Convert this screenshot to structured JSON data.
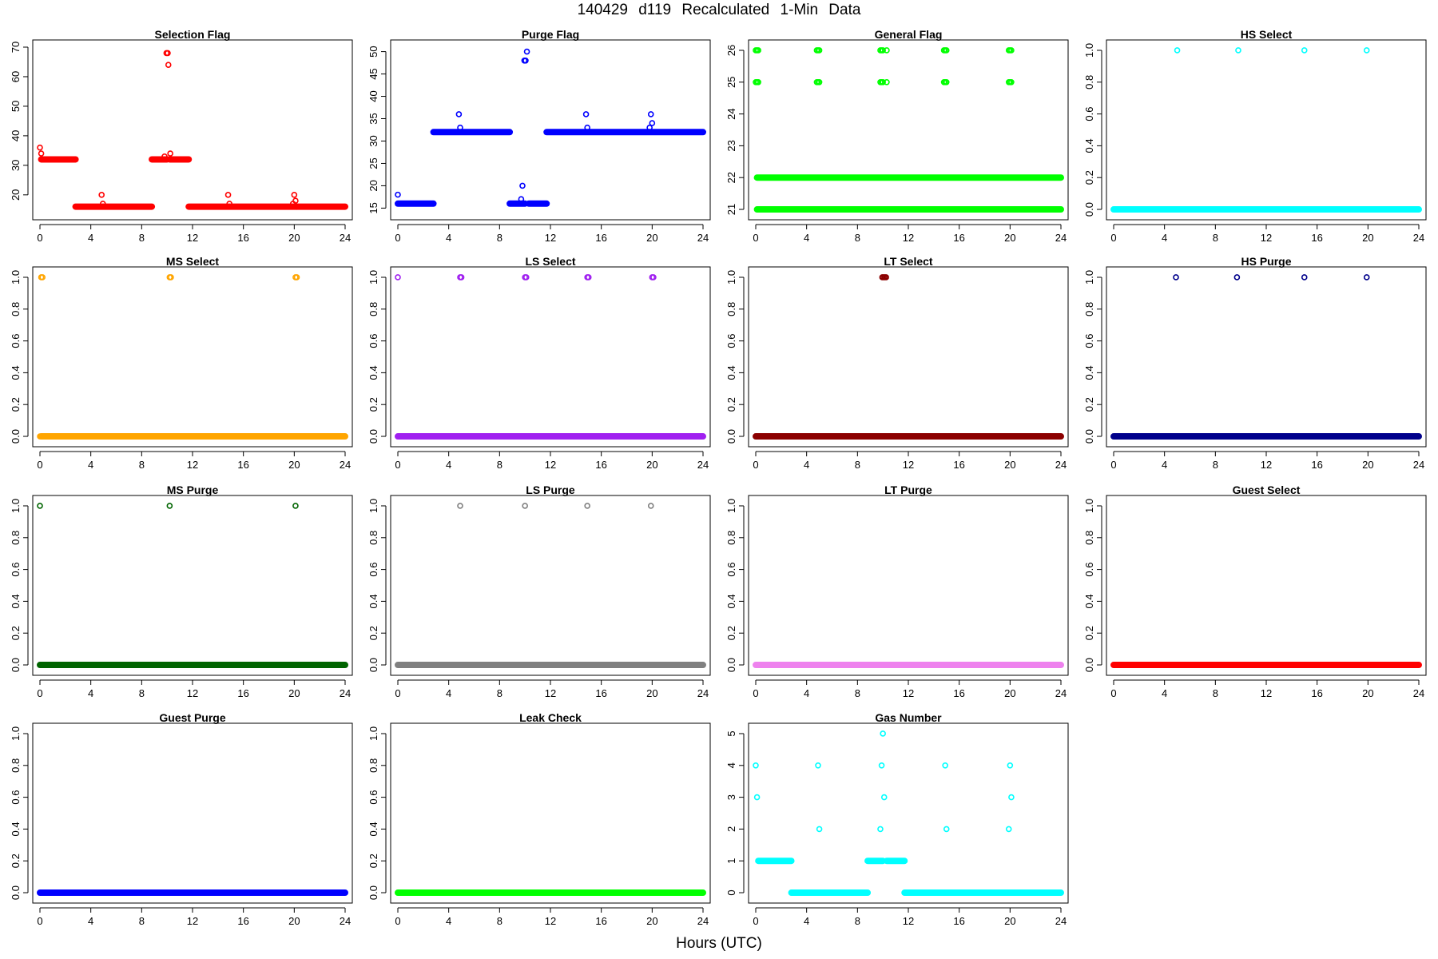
{
  "figure": {
    "title": "140429   d119   Recalculated 1-Min Data",
    "xlabel": "Hours (UTC)"
  },
  "chart_data": [
    {
      "type": "scatter",
      "title": "Selection Flag",
      "color": "#ff0000",
      "xlim": [
        0,
        24
      ],
      "ylim": [
        14,
        70
      ],
      "xticks": [
        0,
        4,
        8,
        12,
        16,
        20,
        24
      ],
      "yticks": [
        20,
        30,
        40,
        50,
        60,
        70
      ],
      "segments": [
        {
          "x0": 0.1,
          "x1": 2.8,
          "y": 32
        },
        {
          "x0": 2.8,
          "x1": 8.8,
          "y": 16
        },
        {
          "x0": 8.8,
          "x1": 10.0,
          "y": 32
        },
        {
          "x0": 10.2,
          "x1": 11.7,
          "y": 32
        },
        {
          "x0": 11.7,
          "x1": 20.2,
          "y": 16
        },
        {
          "x0": 20.2,
          "x1": 24.0,
          "y": 16
        }
      ],
      "points": [
        [
          0.0,
          36
        ],
        [
          0.1,
          34
        ],
        [
          4.85,
          20
        ],
        [
          4.95,
          17
        ],
        [
          5.0,
          16
        ],
        [
          9.8,
          33
        ],
        [
          9.95,
          68
        ],
        [
          10.05,
          68
        ],
        [
          10.1,
          64
        ],
        [
          10.25,
          34
        ],
        [
          14.8,
          20
        ],
        [
          14.9,
          17
        ],
        [
          20.0,
          20
        ],
        [
          19.9,
          17
        ],
        [
          20.1,
          18
        ]
      ]
    },
    {
      "type": "scatter",
      "title": "Purge Flag",
      "color": "#0000ff",
      "xlim": [
        0,
        24
      ],
      "ylim": [
        14,
        51
      ],
      "xticks": [
        0,
        4,
        8,
        12,
        16,
        20,
        24
      ],
      "yticks": [
        15,
        20,
        25,
        30,
        35,
        40,
        45,
        50
      ],
      "segments": [
        {
          "x0": 0.0,
          "x1": 2.8,
          "y": 16
        },
        {
          "x0": 2.8,
          "x1": 8.8,
          "y": 32
        },
        {
          "x0": 8.8,
          "x1": 10.0,
          "y": 16
        },
        {
          "x0": 10.3,
          "x1": 11.7,
          "y": 16
        },
        {
          "x0": 11.7,
          "x1": 24.0,
          "y": 32
        }
      ],
      "points": [
        [
          0.0,
          18
        ],
        [
          4.8,
          36
        ],
        [
          4.9,
          33
        ],
        [
          9.7,
          17
        ],
        [
          9.8,
          20
        ],
        [
          9.95,
          48
        ],
        [
          10.05,
          48
        ],
        [
          10.15,
          50
        ],
        [
          14.8,
          36
        ],
        [
          14.9,
          33
        ],
        [
          19.9,
          36
        ],
        [
          20.0,
          34
        ],
        [
          19.8,
          33
        ]
      ]
    },
    {
      "type": "scatter",
      "title": "General Flag",
      "color": "#00ff00",
      "xlim": [
        0,
        24
      ],
      "ylim": [
        20.9,
        26.1
      ],
      "xticks": [
        0,
        4,
        8,
        12,
        16,
        20,
        24
      ],
      "yticks": [
        21,
        22,
        23,
        24,
        25,
        26
      ],
      "segments": [
        {
          "x0": 0.1,
          "x1": 24.0,
          "y": 22
        },
        {
          "x0": 0.1,
          "x1": 24.0,
          "y": 21
        }
      ],
      "points": [
        [
          0.0,
          26
        ],
        [
          0.1,
          26
        ],
        [
          0.2,
          26
        ],
        [
          0.0,
          25
        ],
        [
          0.1,
          25
        ],
        [
          0.2,
          25
        ],
        [
          4.8,
          26
        ],
        [
          4.9,
          26
        ],
        [
          5.0,
          26
        ],
        [
          4.8,
          25
        ],
        [
          4.9,
          25
        ],
        [
          5.0,
          25
        ],
        [
          9.8,
          26
        ],
        [
          9.9,
          26
        ],
        [
          10.0,
          26
        ],
        [
          10.3,
          26
        ],
        [
          9.8,
          25
        ],
        [
          9.9,
          25
        ],
        [
          10.0,
          25
        ],
        [
          10.3,
          25
        ],
        [
          14.8,
          26
        ],
        [
          14.9,
          26
        ],
        [
          15.0,
          26
        ],
        [
          14.8,
          25
        ],
        [
          14.9,
          25
        ],
        [
          15.0,
          25
        ],
        [
          19.9,
          26
        ],
        [
          20.0,
          26
        ],
        [
          20.1,
          26
        ],
        [
          19.9,
          25
        ],
        [
          20.0,
          25
        ],
        [
          20.1,
          25
        ]
      ]
    },
    {
      "type": "scatter",
      "title": "HS Select",
      "color": "#00ffff",
      "xlim": [
        0,
        24
      ],
      "ylim": [
        -0.02,
        1.02
      ],
      "xticks": [
        0,
        4,
        8,
        12,
        16,
        20,
        24
      ],
      "yticks": [
        0.0,
        0.2,
        0.4,
        0.6,
        0.8,
        1.0
      ],
      "segments": [
        {
          "x0": 0.0,
          "x1": 24.0,
          "y": 0
        }
      ],
      "points": [
        [
          5.0,
          1
        ],
        [
          9.8,
          1
        ],
        [
          15.0,
          1
        ],
        [
          19.9,
          1
        ]
      ]
    },
    {
      "type": "scatter",
      "title": "MS Select",
      "color": "#ffa500",
      "xlim": [
        0,
        24
      ],
      "ylim": [
        -0.02,
        1.02
      ],
      "xticks": [
        0,
        4,
        8,
        12,
        16,
        20,
        24
      ],
      "yticks": [
        0.0,
        0.2,
        0.4,
        0.6,
        0.8,
        1.0
      ],
      "segments": [
        {
          "x0": 0.1,
          "x1": 24.0,
          "y": 0
        }
      ],
      "points": [
        [
          0.0,
          0
        ],
        [
          0.1,
          1
        ],
        [
          0.2,
          1
        ],
        [
          10.2,
          1
        ],
        [
          10.3,
          1
        ],
        [
          20.1,
          1
        ],
        [
          20.2,
          1
        ]
      ]
    },
    {
      "type": "scatter",
      "title": "LS Select",
      "color": "#a020f0",
      "xlim": [
        0,
        24
      ],
      "ylim": [
        -0.02,
        1.02
      ],
      "xticks": [
        0,
        4,
        8,
        12,
        16,
        20,
        24
      ],
      "yticks": [
        0.0,
        0.2,
        0.4,
        0.6,
        0.8,
        1.0
      ],
      "segments": [
        {
          "x0": 0.0,
          "x1": 24.0,
          "y": 0
        }
      ],
      "points": [
        [
          0.0,
          1
        ],
        [
          4.9,
          1
        ],
        [
          5.0,
          1
        ],
        [
          10.0,
          1
        ],
        [
          10.1,
          1
        ],
        [
          14.9,
          1
        ],
        [
          15.0,
          1
        ],
        [
          20.0,
          1
        ],
        [
          20.1,
          1
        ]
      ]
    },
    {
      "type": "scatter",
      "title": "LT Select",
      "color": "#8b0000",
      "xlim": [
        0,
        24
      ],
      "ylim": [
        -0.02,
        1.02
      ],
      "xticks": [
        0,
        4,
        8,
        12,
        16,
        20,
        24
      ],
      "yticks": [
        0.0,
        0.2,
        0.4,
        0.6,
        0.8,
        1.0
      ],
      "segments": [
        {
          "x0": 0.0,
          "x1": 24.0,
          "y": 0
        }
      ],
      "points": [
        [
          9.95,
          1
        ],
        [
          10.05,
          1
        ],
        [
          10.15,
          1
        ],
        [
          10.25,
          1
        ]
      ]
    },
    {
      "type": "scatter",
      "title": "HS Purge",
      "color": "#00008b",
      "xlim": [
        0,
        24
      ],
      "ylim": [
        -0.02,
        1.02
      ],
      "xticks": [
        0,
        4,
        8,
        12,
        16,
        20,
        24
      ],
      "yticks": [
        0.0,
        0.2,
        0.4,
        0.6,
        0.8,
        1.0
      ],
      "segments": [
        {
          "x0": 0.0,
          "x1": 24.0,
          "y": 0
        }
      ],
      "points": [
        [
          4.9,
          1
        ],
        [
          9.7,
          1
        ],
        [
          15.0,
          1
        ],
        [
          19.9,
          1
        ]
      ]
    },
    {
      "type": "scatter",
      "title": "MS Purge",
      "color": "#006400",
      "xlim": [
        0,
        24
      ],
      "ylim": [
        -0.02,
        1.02
      ],
      "xticks": [
        0,
        4,
        8,
        12,
        16,
        20,
        24
      ],
      "yticks": [
        0.0,
        0.2,
        0.4,
        0.6,
        0.8,
        1.0
      ],
      "segments": [
        {
          "x0": 0.0,
          "x1": 24.0,
          "y": 0
        }
      ],
      "points": [
        [
          0.0,
          1
        ],
        [
          10.2,
          1
        ],
        [
          20.1,
          1
        ]
      ]
    },
    {
      "type": "scatter",
      "title": "LS Purge",
      "color": "#808080",
      "xlim": [
        0,
        24
      ],
      "ylim": [
        -0.02,
        1.02
      ],
      "xticks": [
        0,
        4,
        8,
        12,
        16,
        20,
        24
      ],
      "yticks": [
        0.0,
        0.2,
        0.4,
        0.6,
        0.8,
        1.0
      ],
      "segments": [
        {
          "x0": 0.0,
          "x1": 24.0,
          "y": 0
        }
      ],
      "points": [
        [
          4.9,
          1
        ],
        [
          10.0,
          1
        ],
        [
          14.9,
          1
        ],
        [
          19.9,
          1
        ]
      ]
    },
    {
      "type": "scatter",
      "title": "LT Purge",
      "color": "#ee82ee",
      "xlim": [
        0,
        24
      ],
      "ylim": [
        -0.02,
        1.02
      ],
      "xticks": [
        0,
        4,
        8,
        12,
        16,
        20,
        24
      ],
      "yticks": [
        0.0,
        0.2,
        0.4,
        0.6,
        0.8,
        1.0
      ],
      "segments": [
        {
          "x0": 0.0,
          "x1": 24.0,
          "y": 0
        }
      ],
      "points": []
    },
    {
      "type": "scatter",
      "title": "Guest Select",
      "color": "#ff0000",
      "xlim": [
        0,
        24
      ],
      "ylim": [
        -0.02,
        1.02
      ],
      "xticks": [
        0,
        4,
        8,
        12,
        16,
        20,
        24
      ],
      "yticks": [
        0.0,
        0.2,
        0.4,
        0.6,
        0.8,
        1.0
      ],
      "segments": [
        {
          "x0": 0.0,
          "x1": 24.0,
          "y": 0
        }
      ],
      "points": []
    },
    {
      "type": "scatter",
      "title": "Guest Purge",
      "color": "#0000ff",
      "xlim": [
        0,
        24
      ],
      "ylim": [
        -0.02,
        1.02
      ],
      "xticks": [
        0,
        4,
        8,
        12,
        16,
        20,
        24
      ],
      "yticks": [
        0.0,
        0.2,
        0.4,
        0.6,
        0.8,
        1.0
      ],
      "segments": [
        {
          "x0": 0.0,
          "x1": 24.0,
          "y": 0
        }
      ],
      "points": []
    },
    {
      "type": "scatter",
      "title": "Leak Check",
      "color": "#00ff00",
      "xlim": [
        0,
        24
      ],
      "ylim": [
        -0.02,
        1.02
      ],
      "xticks": [
        0,
        4,
        8,
        12,
        16,
        20,
        24
      ],
      "yticks": [
        0.0,
        0.2,
        0.4,
        0.6,
        0.8,
        1.0
      ],
      "segments": [
        {
          "x0": 0.0,
          "x1": 24.0,
          "y": 0
        }
      ],
      "points": []
    },
    {
      "type": "scatter",
      "title": "Gas Number",
      "color": "#00ffff",
      "xlim": [
        0,
        24
      ],
      "ylim": [
        -0.1,
        5.1
      ],
      "xticks": [
        0,
        4,
        8,
        12,
        16,
        20,
        24
      ],
      "yticks": [
        0,
        1,
        2,
        3,
        4,
        5
      ],
      "segments": [
        {
          "x0": 0.2,
          "x1": 2.8,
          "y": 1
        },
        {
          "x0": 2.8,
          "x1": 8.8,
          "y": 0
        },
        {
          "x0": 8.8,
          "x1": 10.0,
          "y": 1
        },
        {
          "x0": 10.3,
          "x1": 11.7,
          "y": 1
        },
        {
          "x0": 11.7,
          "x1": 24.0,
          "y": 0
        }
      ],
      "points": [
        [
          0.0,
          4
        ],
        [
          0.1,
          3
        ],
        [
          4.9,
          4
        ],
        [
          5.0,
          2
        ],
        [
          9.9,
          4
        ],
        [
          9.8,
          2
        ],
        [
          10.0,
          5
        ],
        [
          10.1,
          3
        ],
        [
          14.9,
          4
        ],
        [
          15.0,
          2
        ],
        [
          19.9,
          2
        ],
        [
          20.0,
          4
        ],
        [
          20.1,
          3
        ]
      ]
    }
  ]
}
